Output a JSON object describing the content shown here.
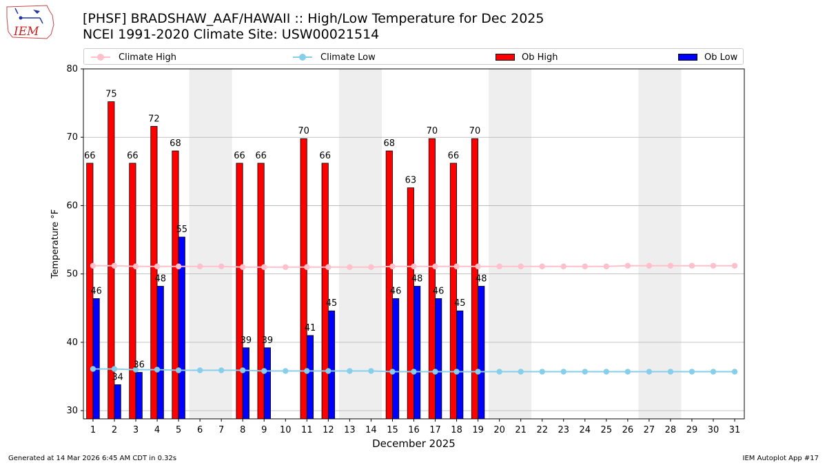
{
  "header": {
    "title_line1": "[PHSF] BRADSHAW_AAF/HAWAII :: High/Low Temperature for Dec 2025",
    "title_line2": "NCEI 1991-2020 Climate Site: USW00021514",
    "logo_text": "IEM"
  },
  "footer": {
    "generated": "Generated at 14 Mar 2026 6:45 AM CDT in 0.32s",
    "app": "IEM Autoplot App #17"
  },
  "legend": {
    "climate_high": "Climate High",
    "climate_low": "Climate Low",
    "ob_high": "Ob High",
    "ob_low": "Ob Low"
  },
  "colors": {
    "ob_high": "#ff0000",
    "ob_low": "#0000ff",
    "climate_high": "#ffc0cb",
    "climate_low": "#87ceeb",
    "weekend_shade": "#eeeeee",
    "grid": "#b0b0b0"
  },
  "chart_data": {
    "type": "bar",
    "xlabel": "December 2025",
    "ylabel": "Temperature °F",
    "ylim": [
      28.8,
      80
    ],
    "yticks": [
      30,
      40,
      50,
      60,
      70,
      80
    ],
    "days": [
      1,
      2,
      3,
      4,
      5,
      6,
      7,
      8,
      9,
      10,
      11,
      12,
      13,
      14,
      15,
      16,
      17,
      18,
      19,
      20,
      21,
      22,
      23,
      24,
      25,
      26,
      27,
      28,
      29,
      30,
      31
    ],
    "shaded_day_pairs": [
      [
        6,
        7
      ],
      [
        13,
        14
      ],
      [
        20,
        21
      ],
      [
        27,
        28
      ]
    ],
    "series": [
      {
        "name": "Ob High",
        "kind": "bar",
        "values": [
          66,
          75,
          66,
          72,
          68,
          null,
          null,
          66,
          66,
          null,
          70,
          66,
          null,
          null,
          68,
          63,
          70,
          66,
          70,
          null,
          null,
          null,
          null,
          null,
          null,
          null,
          null,
          null,
          null,
          null,
          null
        ],
        "plot_values": [
          66.2,
          75.2,
          66.2,
          71.6,
          68,
          null,
          null,
          66.2,
          66.2,
          null,
          69.8,
          66.2,
          null,
          null,
          68,
          62.6,
          69.8,
          66.2,
          69.8,
          null,
          null,
          null,
          null,
          null,
          null,
          null,
          null,
          null,
          null,
          null,
          null
        ]
      },
      {
        "name": "Ob Low",
        "kind": "bar",
        "values": [
          46,
          34,
          36,
          48,
          55,
          null,
          null,
          39,
          39,
          null,
          41,
          45,
          null,
          null,
          46,
          48,
          46,
          45,
          48,
          null,
          null,
          null,
          null,
          null,
          null,
          null,
          null,
          null,
          null,
          null,
          null
        ],
        "plot_values": [
          46.4,
          33.8,
          35.6,
          48.2,
          55.4,
          null,
          null,
          39.2,
          39.2,
          null,
          41,
          44.6,
          null,
          null,
          46.4,
          48.2,
          46.4,
          44.6,
          48.2,
          null,
          null,
          null,
          null,
          null,
          null,
          null,
          null,
          null,
          null,
          null,
          null
        ]
      },
      {
        "name": "Climate High",
        "kind": "line",
        "values": [
          51.2,
          51.2,
          51.1,
          51.1,
          51.1,
          51.1,
          51.1,
          51,
          51,
          51,
          51,
          51,
          51,
          51,
          51.1,
          51.1,
          51.1,
          51.1,
          51.1,
          51.1,
          51.1,
          51.1,
          51.1,
          51.1,
          51.1,
          51.2,
          51.2,
          51.2,
          51.2,
          51.2,
          51.2
        ]
      },
      {
        "name": "Climate Low",
        "kind": "line",
        "values": [
          36.1,
          36.1,
          36,
          36,
          35.9,
          35.9,
          35.9,
          35.9,
          35.8,
          35.8,
          35.8,
          35.8,
          35.8,
          35.8,
          35.7,
          35.7,
          35.7,
          35.7,
          35.7,
          35.7,
          35.7,
          35.7,
          35.7,
          35.7,
          35.7,
          35.7,
          35.7,
          35.7,
          35.7,
          35.7,
          35.7
        ]
      }
    ]
  }
}
